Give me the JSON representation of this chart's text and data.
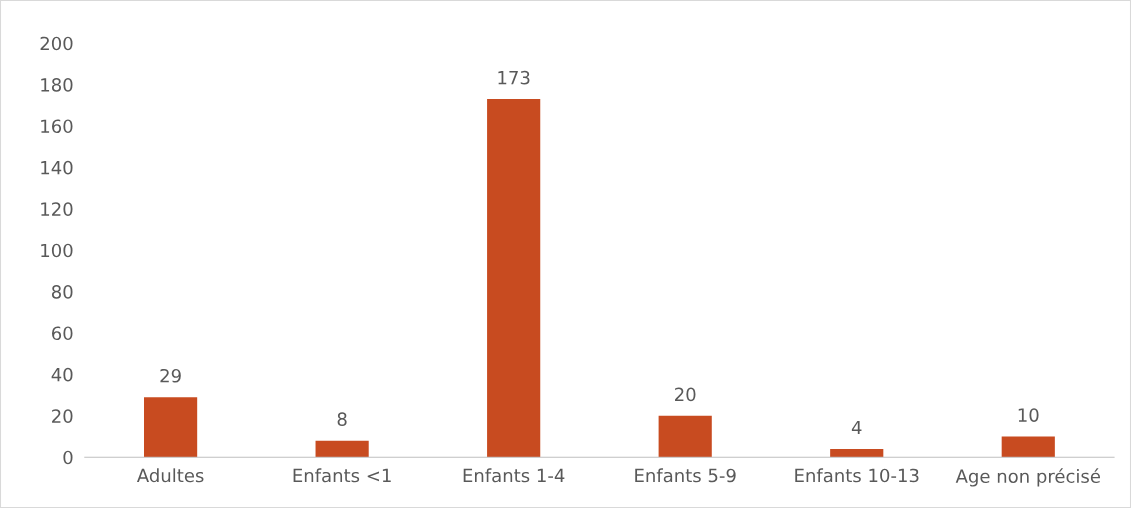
{
  "chart_data": {
    "type": "bar",
    "categories": [
      "Adultes",
      "Enfants <1",
      "Enfants 1-4",
      "Enfants 5-9",
      "Enfants 10-13",
      "Age non précisé"
    ],
    "values": [
      29,
      8,
      173,
      20,
      4,
      10
    ],
    "color": "#c84b20",
    "ylim": [
      0,
      200
    ],
    "yticks": [
      0,
      20,
      40,
      60,
      80,
      100,
      120,
      140,
      160,
      180,
      200
    ],
    "grid": false,
    "data_labels": true
  }
}
